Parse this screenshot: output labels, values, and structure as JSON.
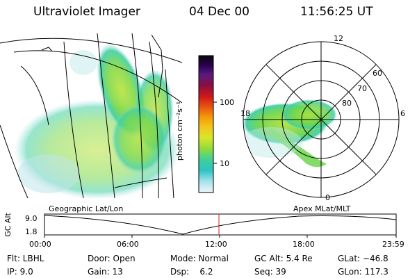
{
  "header": {
    "title": "Ultraviolet Imager",
    "date": "04 Dec 00",
    "time": "11:56:25 UT"
  },
  "colorbar": {
    "unit_label": "photon cm⁻²s⁻¹",
    "ticks": [
      "100",
      "10"
    ],
    "colors": [
      "#0a0a0a",
      "#2a0050",
      "#3c1878",
      "#5a1a80",
      "#8a0f40",
      "#b5102a",
      "#d01818",
      "#e85a10",
      "#f59a08",
      "#f2c61a",
      "#d9e62a",
      "#a9e02a",
      "#6fd84a",
      "#3ecf9a",
      "#2ec4c4",
      "#5fd0df",
      "#a7e2ec",
      "#d9eef2"
    ]
  },
  "panels": {
    "left_label": "Geographic Lat/Lon",
    "right_label": "Apex MLat/MLT"
  },
  "polar": {
    "mlt_labels": [
      "12",
      "18",
      "6",
      "0"
    ],
    "lat_labels": [
      "60",
      "70",
      "80"
    ]
  },
  "timeline": {
    "axis_label": "GC Alt",
    "y_ticks": [
      "9.0",
      "1.8"
    ],
    "x_ticks": [
      "00:00",
      "06:00",
      "12:00",
      "18:00",
      "23:59"
    ]
  },
  "info": {
    "flt": "Flt: LBHL",
    "door": "Door: Open",
    "mode": "Mode: Normal",
    "gc_alt": "GC Alt: 5.4 Re",
    "glat": "GLat: −46.8",
    "ip": "IP:  9.0",
    "gain": "Gain: 13",
    "dsp": "Dsp:    6.2",
    "seq": "Seq: 39",
    "glon": "GLon: 117.3"
  }
}
